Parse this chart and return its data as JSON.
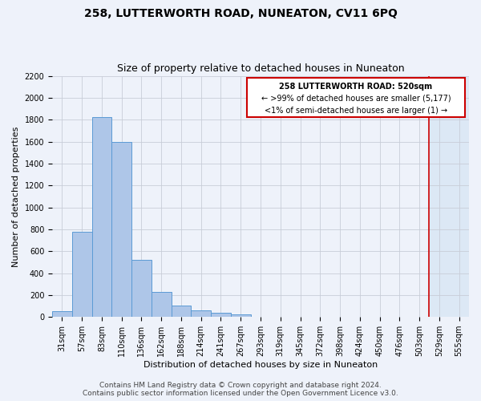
{
  "title": "258, LUTTERWORTH ROAD, NUNEATON, CV11 6PQ",
  "subtitle": "Size of property relative to detached houses in Nuneaton",
  "xlabel": "Distribution of detached houses by size in Nuneaton",
  "ylabel": "Number of detached properties",
  "bin_labels": [
    "31sqm",
    "57sqm",
    "83sqm",
    "110sqm",
    "136sqm",
    "162sqm",
    "188sqm",
    "214sqm",
    "241sqm",
    "267sqm",
    "293sqm",
    "319sqm",
    "345sqm",
    "372sqm",
    "398sqm",
    "424sqm",
    "450sqm",
    "476sqm",
    "503sqm",
    "529sqm",
    "555sqm"
  ],
  "bar_heights": [
    50,
    780,
    1820,
    1600,
    520,
    230,
    105,
    60,
    35,
    20,
    5,
    2,
    1,
    0,
    0,
    0,
    0,
    0,
    0,
    0,
    0
  ],
  "bar_color": "#aec6e8",
  "bar_edgecolor": "#5b9bd5",
  "background_color": "#eef2fa",
  "grid_color": "#c8cdd8",
  "ylim": [
    0,
    2200
  ],
  "yticks": [
    0,
    200,
    400,
    600,
    800,
    1000,
    1200,
    1400,
    1600,
    1800,
    2000,
    2200
  ],
  "red_line_bin": 19,
  "red_line_color": "#cc0000",
  "highlight_color": "#dce8f5",
  "annotation_text_line1": "258 LUTTERWORTH ROAD: 520sqm",
  "annotation_text_line2": "← >99% of detached houses are smaller (5,177)",
  "annotation_text_line3": "<1% of semi-detached houses are larger (1) →",
  "annotation_box_color": "#cc0000",
  "footer_line1": "Contains HM Land Registry data © Crown copyright and database right 2024.",
  "footer_line2": "Contains public sector information licensed under the Open Government Licence v3.0.",
  "title_fontsize": 10,
  "subtitle_fontsize": 9,
  "axis_label_fontsize": 8,
  "tick_fontsize": 7,
  "annotation_fontsize": 7,
  "footer_fontsize": 6.5
}
